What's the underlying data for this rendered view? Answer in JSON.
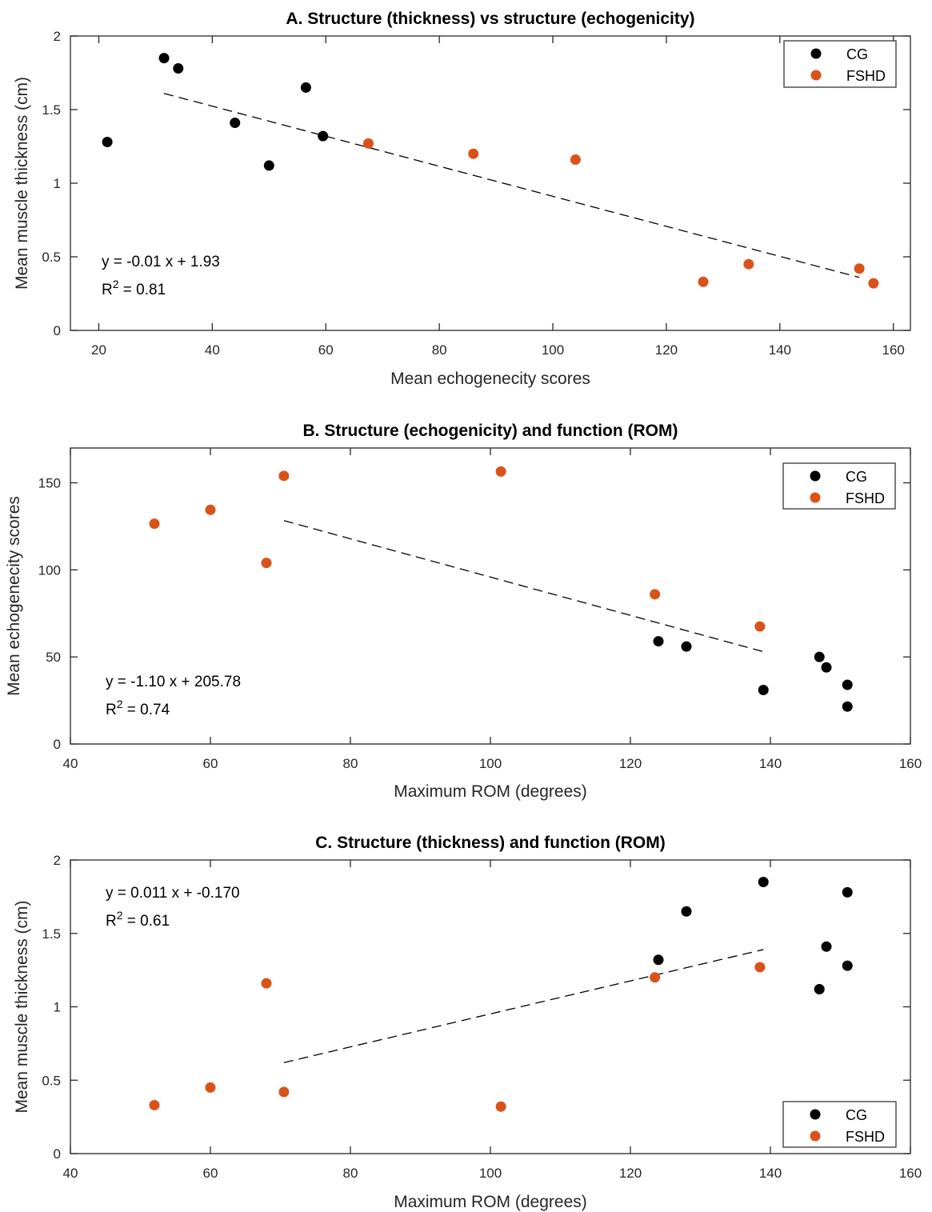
{
  "chart_data": [
    {
      "id": "A",
      "type": "scatter",
      "title": "A. Structure (thickness) vs structure (echogenicity)",
      "xlabel": "Mean echogenecity scores",
      "ylabel": "Mean muscle thickness (cm)",
      "xlim": [
        15,
        163
      ],
      "ylim": [
        0,
        2
      ],
      "xticks": [
        20,
        40,
        60,
        80,
        100,
        120,
        140,
        160
      ],
      "yticks": [
        0,
        0.5,
        1,
        1.5,
        2
      ],
      "grid": false,
      "legend_position": "top-right",
      "series": [
        {
          "name": "CG",
          "color": "#000000",
          "points": [
            [
              21.5,
              1.28
            ],
            [
              31.5,
              1.85
            ],
            [
              34,
              1.78
            ],
            [
              44,
              1.41
            ],
            [
              50,
              1.12
            ],
            [
              56.5,
              1.65
            ],
            [
              59.5,
              1.32
            ]
          ]
        },
        {
          "name": "FSHD",
          "color": "#d95319",
          "points": [
            [
              67.5,
              1.27
            ],
            [
              86,
              1.2
            ],
            [
              104,
              1.16
            ],
            [
              126.5,
              0.33
            ],
            [
              134.5,
              0.45
            ],
            [
              154,
              0.42
            ],
            [
              156.5,
              0.32
            ]
          ]
        }
      ],
      "fit_line": {
        "x1": 31.5,
        "y1": 1.61,
        "x2": 154,
        "y2": 0.36
      },
      "annotation": {
        "equation": "y = -0.01 x + 1.93",
        "r2_prefix": "R",
        "r2_exp": "2",
        "r2_value": " = 0.81"
      }
    },
    {
      "id": "B",
      "type": "scatter",
      "title": "B. Structure (echogenicity) and function (ROM)",
      "xlabel": "Maximum ROM (degrees)",
      "ylabel": "Mean echogenecity scores",
      "xlim": [
        40,
        160
      ],
      "ylim": [
        0,
        170
      ],
      "xticks": [
        40,
        60,
        80,
        100,
        120,
        140,
        160
      ],
      "yticks": [
        0,
        50,
        100,
        150
      ],
      "grid": false,
      "legend_position": "top-right",
      "series": [
        {
          "name": "CG",
          "color": "#000000",
          "points": [
            [
              124,
              59
            ],
            [
              128,
              56
            ],
            [
              139,
              31
            ],
            [
              147,
              50
            ],
            [
              148,
              44
            ],
            [
              151,
              34
            ],
            [
              151,
              21.5
            ]
          ]
        },
        {
          "name": "FSHD",
          "color": "#d95319",
          "points": [
            [
              52,
              126.5
            ],
            [
              60,
              134.5
            ],
            [
              68,
              104
            ],
            [
              70.5,
              154
            ],
            [
              101.5,
              156.5
            ],
            [
              123.5,
              86
            ],
            [
              138.5,
              67.5
            ]
          ]
        }
      ],
      "fit_line": {
        "x1": 70.5,
        "y1": 128.3,
        "x2": 139,
        "y2": 53
      },
      "annotation": {
        "equation": "y = -1.10 x + 205.78",
        "r2_prefix": "R",
        "r2_exp": "2",
        "r2_value": " = 0.74"
      }
    },
    {
      "id": "C",
      "type": "scatter",
      "title": "C. Structure (thickness) and function (ROM)",
      "xlabel": "Maximum ROM (degrees)",
      "ylabel": "Mean muscle thickness (cm)",
      "xlim": [
        40,
        160
      ],
      "ylim": [
        0,
        2
      ],
      "xticks": [
        40,
        60,
        80,
        100,
        120,
        140,
        160
      ],
      "yticks": [
        0,
        0.5,
        1,
        1.5,
        2
      ],
      "grid": false,
      "legend_position": "bottom-right",
      "series": [
        {
          "name": "CG",
          "color": "#000000",
          "points": [
            [
              124,
              1.32
            ],
            [
              128,
              1.65
            ],
            [
              139,
              1.85
            ],
            [
              147,
              1.12
            ],
            [
              148,
              1.41
            ],
            [
              151,
              1.78
            ],
            [
              151,
              1.28
            ]
          ]
        },
        {
          "name": "FSHD",
          "color": "#d95319",
          "points": [
            [
              52,
              0.33
            ],
            [
              60,
              0.45
            ],
            [
              68,
              1.16
            ],
            [
              70.5,
              0.42
            ],
            [
              101.5,
              0.32
            ],
            [
              123.5,
              1.2
            ],
            [
              138.5,
              1.27
            ]
          ]
        }
      ],
      "fit_line": {
        "x1": 70.5,
        "y1": 0.62,
        "x2": 139,
        "y2": 1.39
      },
      "annotation": {
        "equation": "y = 0.011 x + -0.170",
        "r2_prefix": "R",
        "r2_exp": "2",
        "r2_value": " = 0.61"
      }
    }
  ]
}
